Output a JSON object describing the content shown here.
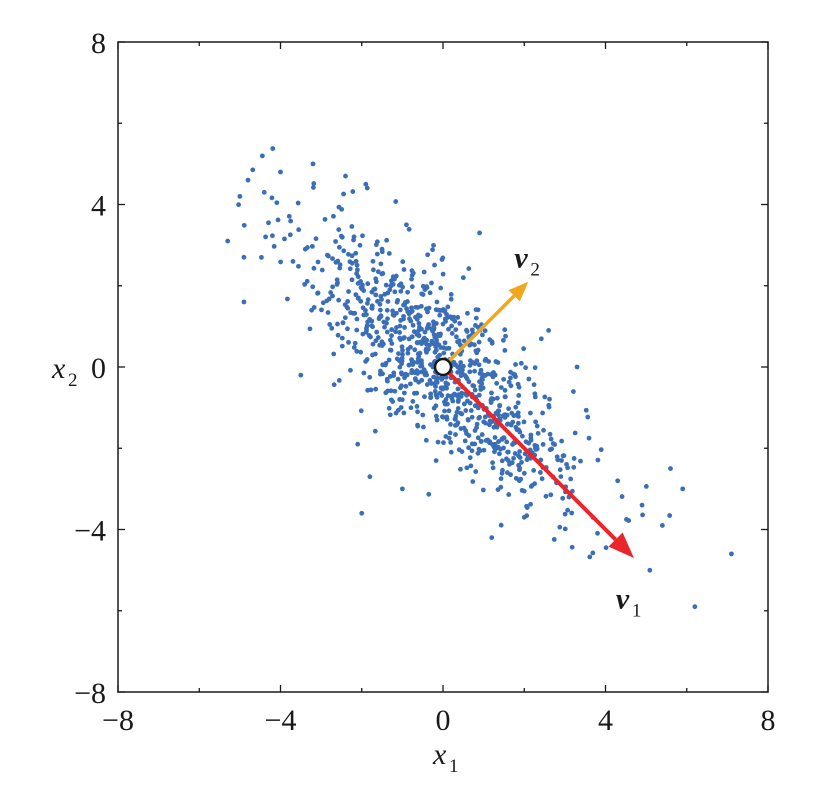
{
  "chart_data": {
    "type": "scatter",
    "title": "",
    "xlabel": "x",
    "xlabel_sub": "1",
    "ylabel": "x",
    "ylabel_sub": "2",
    "xlim": [
      -8,
      8
    ],
    "ylim": [
      -8,
      8
    ],
    "xticks": [
      -8,
      -4,
      0,
      4,
      8
    ],
    "yticks": [
      -8,
      -4,
      0,
      4,
      8
    ],
    "xtick_labels": [
      "−8",
      "−4",
      "0",
      "4",
      "8"
    ],
    "ytick_labels": [
      "−8",
      "−4",
      "0",
      "4",
      "8"
    ],
    "minor_tick_step": 2,
    "grid": false,
    "point_color": "#3a6fb8",
    "point_count": 1000,
    "mean": [
      0,
      0
    ],
    "covariance": [
      [
        3.0,
        -2.4
      ],
      [
        -2.4,
        3.0
      ]
    ],
    "points_sample": [
      [
        -5.3,
        3.1
      ],
      [
        -4.9,
        2.7
      ],
      [
        -4.8,
        4.6
      ],
      [
        -4.9,
        1.6
      ],
      [
        -4.4,
        4.3
      ],
      [
        -4.0,
        4.8
      ],
      [
        -3.2,
        5.0
      ],
      [
        -2.4,
        4.7
      ],
      [
        -1.9,
        4.5
      ],
      [
        -0.9,
        3.5
      ],
      [
        0.9,
        3.3
      ],
      [
        -5.0,
        4.2
      ],
      [
        -3.5,
        -0.2
      ],
      [
        -2.1,
        -1.9
      ],
      [
        -1.8,
        -2.7
      ],
      [
        -2.0,
        -3.6
      ],
      [
        -1.0,
        -3.0
      ],
      [
        1.2,
        -4.2
      ],
      [
        2.0,
        -3.7
      ],
      [
        3.1,
        -3.2
      ],
      [
        4.3,
        -2.8
      ],
      [
        4.9,
        -3.4
      ],
      [
        5.4,
        -3.9
      ],
      [
        5.6,
        -2.5
      ],
      [
        5.9,
        -3.0
      ],
      [
        7.1,
        -4.6
      ],
      [
        6.2,
        -5.9
      ],
      [
        3.3,
        0.0
      ],
      [
        2.6,
        0.9
      ],
      [
        0.5,
        2.2
      ],
      [
        -1.5,
        2.9
      ],
      [
        1.6,
        -1.4
      ],
      [
        -0.6,
        0.9
      ]
    ],
    "mean_marker": [
      0,
      0
    ],
    "vectors": [
      {
        "name": "v",
        "sub": "1",
        "from": [
          0,
          0
        ],
        "to": [
          4.7,
          -4.7
        ],
        "color": "#e8262b",
        "label_at": [
          4.6,
          -5.7
        ]
      },
      {
        "name": "v",
        "sub": "2",
        "from": [
          0,
          0
        ],
        "to": [
          2.1,
          2.1
        ],
        "color": "#f2a71b",
        "label_at": [
          2.1,
          2.7
        ]
      }
    ]
  }
}
